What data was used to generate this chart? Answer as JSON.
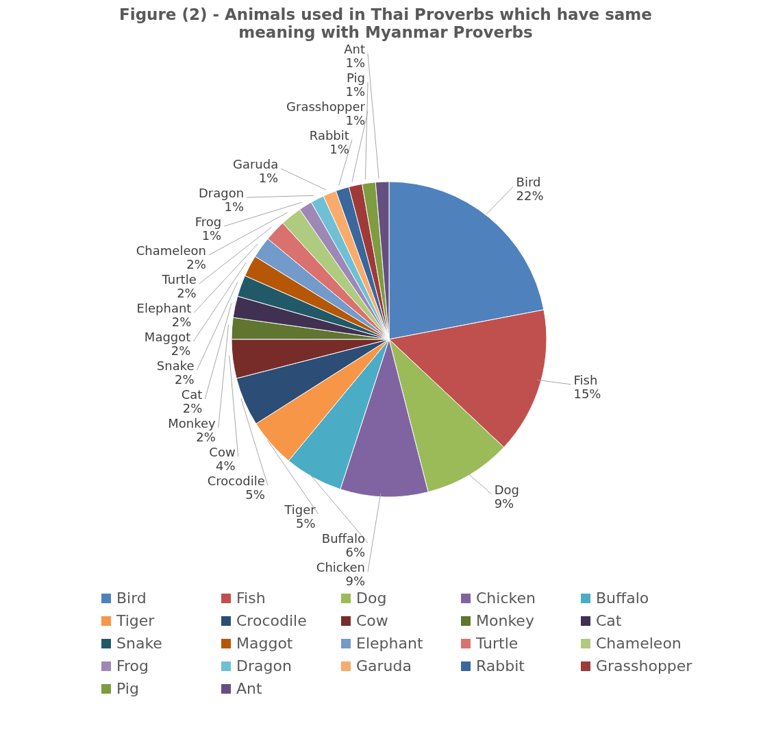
{
  "chart_data": {
    "type": "pie",
    "title": "Figure (2) - Animals used in Thai Proverbs which have same meaning with Myanmar Proverbs",
    "categories": [
      "Bird",
      "Fish",
      "Dog",
      "Chicken",
      "Buffalo",
      "Tiger",
      "Crocodile",
      "Cow",
      "Monkey",
      "Cat",
      "Snake",
      "Maggot",
      "Elephant",
      "Turtle",
      "Chameleon",
      "Frog",
      "Dragon",
      "Garuda",
      "Rabbit",
      "Grasshopper",
      "Pig",
      "Ant"
    ],
    "values": [
      22,
      15,
      9,
      9,
      6,
      5,
      5,
      4,
      2.2,
      2.2,
      2.2,
      2.2,
      2.2,
      2.2,
      2.2,
      1.37,
      1.37,
      1.37,
      1.37,
      1.37,
      1.37,
      1.37
    ],
    "value_labels": [
      "22%",
      "15%",
      "9%",
      "9%",
      "6%",
      "5%",
      "5%",
      "4%",
      "2%",
      "2%",
      "2%",
      "2%",
      "2%",
      "2%",
      "2%",
      "1%",
      "1%",
      "1%",
      "1%",
      "1%",
      "1%",
      "1%"
    ],
    "colors": [
      "#4f81bd",
      "#c0504d",
      "#9bbb59",
      "#8064a2",
      "#4bacc6",
      "#f79646",
      "#2c4d75",
      "#772c2a",
      "#5f7530",
      "#403152",
      "#215968",
      "#b65708",
      "#729aca",
      "#d9726f",
      "#afcb7f",
      "#9d88b6",
      "#6fc0d4",
      "#f9ab6b",
      "#3a679c",
      "#9e3b38",
      "#7e9c40",
      "#664f80"
    ],
    "legend": "bottom"
  }
}
